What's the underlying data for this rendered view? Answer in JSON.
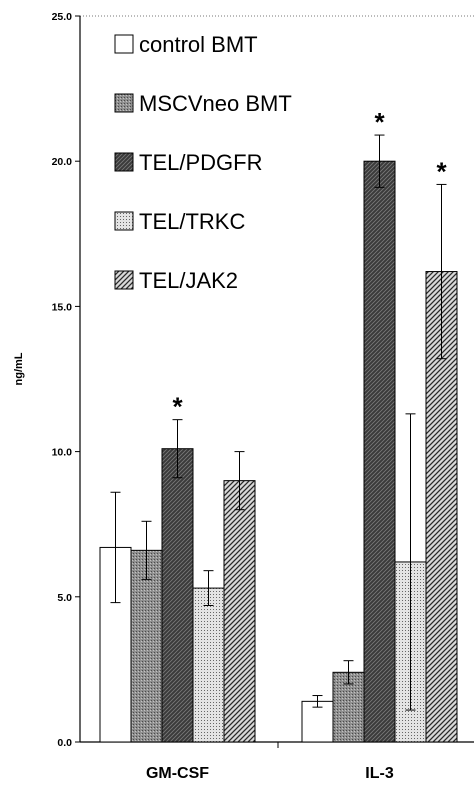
{
  "chart_data": {
    "type": "bar",
    "title": "",
    "xlabel": "",
    "ylabel": "ng/mL",
    "ylim": [
      0,
      25
    ],
    "yticks": [
      "0.0",
      "5.0",
      "10.0",
      "15.0",
      "20.0",
      "25.0"
    ],
    "grid": false,
    "legend_position": "top-left",
    "categories": [
      "GM-CSF",
      "IL-3"
    ],
    "series": [
      {
        "name": "control BMT",
        "values": [
          6.7,
          1.4
        ],
        "errors": [
          1.9,
          0.2
        ],
        "significant": [
          false,
          false
        ]
      },
      {
        "name": "MSCVneo BMT",
        "values": [
          6.6,
          2.4
        ],
        "errors": [
          1.0,
          0.4
        ],
        "significant": [
          false,
          false
        ]
      },
      {
        "name": "TEL/PDGFR",
        "values": [
          10.1,
          20.0
        ],
        "errors": [
          1.0,
          0.9
        ],
        "significant": [
          true,
          true
        ]
      },
      {
        "name": "TEL/TRKC",
        "values": [
          5.3,
          6.2
        ],
        "errors": [
          0.6,
          5.1
        ],
        "significant": [
          false,
          false
        ]
      },
      {
        "name": "TEL/JAK2",
        "values": [
          9.0,
          16.2
        ],
        "errors": [
          1.0,
          3.0
        ],
        "significant": [
          false,
          true
        ]
      }
    ],
    "significance_marker": "*"
  }
}
